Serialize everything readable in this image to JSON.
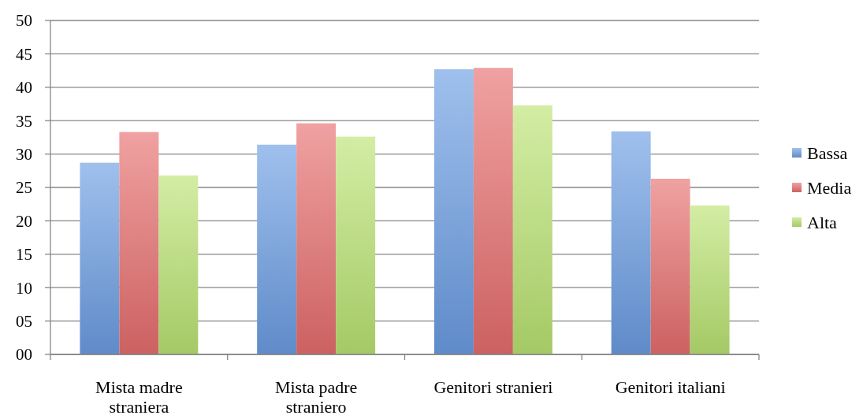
{
  "chart_data": {
    "type": "bar",
    "categories": [
      "Mista madre straniera",
      "Mista padre straniero",
      "Genitori stranieri",
      "Genitori italiani"
    ],
    "series": [
      {
        "name": "Bassa",
        "color": "#6c9ee4",
        "values": [
          28.7,
          31.4,
          42.7,
          33.4
        ]
      },
      {
        "name": "Media",
        "color": "#e86e6e",
        "values": [
          33.3,
          34.6,
          42.9,
          26.3
        ]
      },
      {
        "name": "Alta",
        "color": "#bce473",
        "values": [
          26.8,
          32.6,
          37.3,
          22.3
        ]
      }
    ],
    "ylim": [
      0,
      50
    ],
    "yticks": [
      {
        "value": 0,
        "label": "00"
      },
      {
        "value": 5,
        "label": "05"
      },
      10,
      15,
      20,
      25,
      30,
      35,
      40,
      45,
      50
    ],
    "grid": "y",
    "legend": "right"
  }
}
